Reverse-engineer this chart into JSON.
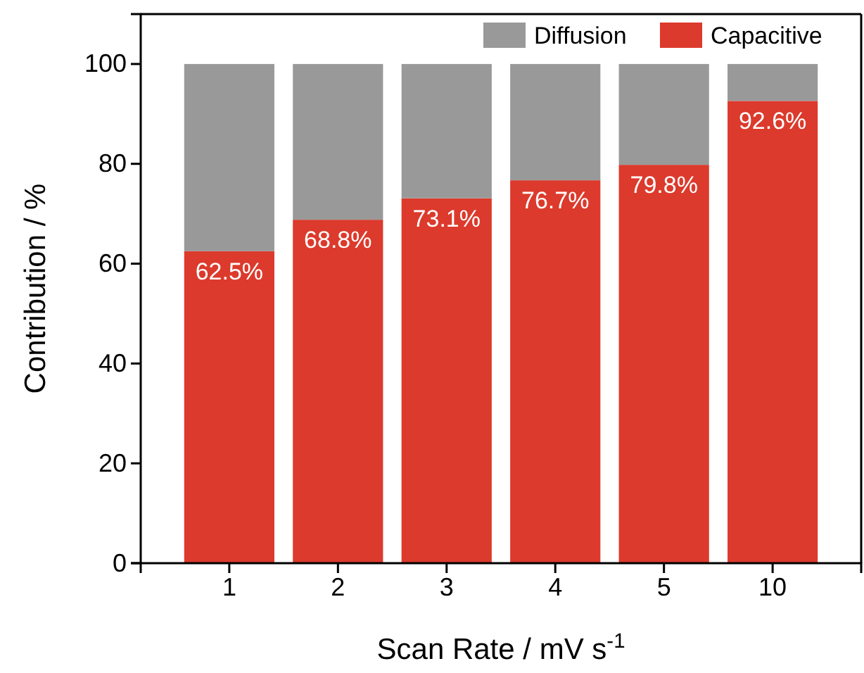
{
  "chart_data": {
    "type": "bar",
    "stacked": true,
    "xlabel": "Scan Rate / mV s$^{-1}$",
    "ylabel": "Contribution / %",
    "categories": [
      "1",
      "2",
      "3",
      "4",
      "5",
      "10"
    ],
    "series": [
      {
        "name": "Capacitive",
        "color": "#dc3a2c",
        "values": [
          62.5,
          68.8,
          73.1,
          76.7,
          79.8,
          92.6
        ],
        "value_labels": [
          "62.5%",
          "68.8%",
          "73.1%",
          "76.7%",
          "79.8%",
          "92.6%"
        ]
      },
      {
        "name": "Diffusion",
        "color": "#999999",
        "values": [
          37.5,
          31.2,
          26.9,
          23.3,
          20.2,
          7.4
        ]
      }
    ],
    "ylim": [
      0,
      110
    ],
    "yticks": [
      0,
      20,
      40,
      60,
      80,
      100
    ],
    "grid": false,
    "legend": "top right"
  }
}
